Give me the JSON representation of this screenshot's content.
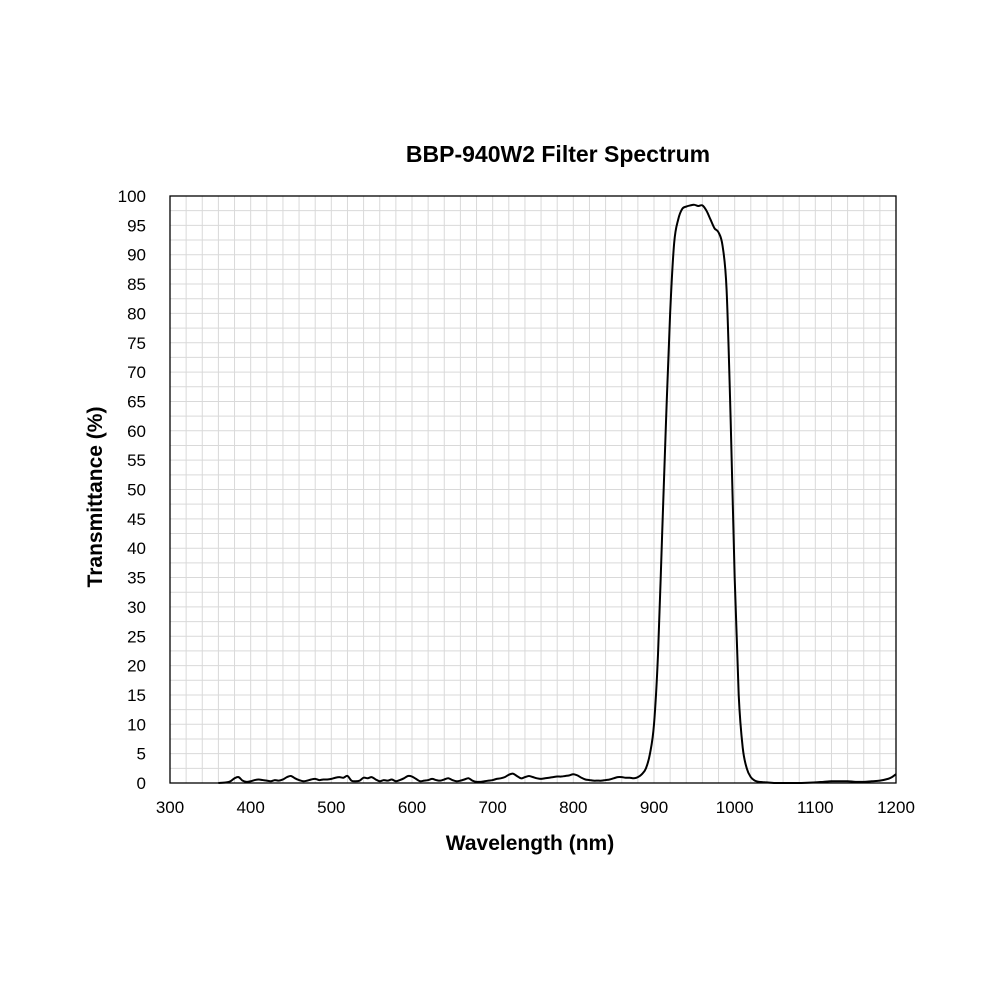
{
  "chart_data": {
    "type": "line",
    "title": "BBP-940W2 Filter Spectrum",
    "xlabel": "Wavelength (nm)",
    "ylabel": "Transmittance (%)",
    "xlim": [
      300,
      1200
    ],
    "ylim": [
      0,
      100
    ],
    "x_ticks": [
      300,
      400,
      500,
      600,
      700,
      800,
      900,
      1000,
      1100,
      1200
    ],
    "y_ticks": [
      0,
      5,
      10,
      15,
      20,
      25,
      30,
      35,
      40,
      45,
      50,
      55,
      60,
      65,
      70,
      75,
      80,
      85,
      90,
      95,
      100
    ],
    "grid": true,
    "legend": "none",
    "line_color": "#000000",
    "series": [
      {
        "x": [
          360,
          370,
          375,
          380,
          385,
          390,
          395,
          400,
          405,
          410,
          415,
          420,
          425,
          430,
          435,
          440,
          445,
          450,
          455,
          460,
          465,
          470,
          475,
          480,
          485,
          490,
          495,
          500,
          505,
          510,
          515,
          520,
          525,
          530,
          535,
          540,
          545,
          550,
          555,
          560,
          565,
          570,
          575,
          580,
          585,
          590,
          595,
          600,
          605,
          610,
          615,
          620,
          625,
          630,
          635,
          640,
          645,
          650,
          655,
          660,
          665,
          670,
          675,
          680,
          685,
          690,
          695,
          700,
          705,
          710,
          715,
          720,
          725,
          730,
          735,
          740,
          745,
          750,
          755,
          760,
          765,
          770,
          775,
          780,
          785,
          790,
          795,
          800,
          805,
          810,
          815,
          820,
          825,
          830,
          835,
          840,
          845,
          850,
          855,
          860,
          865,
          870,
          875,
          880,
          885,
          890,
          895,
          900,
          905,
          910,
          915,
          920,
          925,
          930,
          935,
          940,
          945,
          950,
          955,
          960,
          965,
          970,
          975,
          980,
          985,
          990,
          995,
          1000,
          1005,
          1010,
          1015,
          1020,
          1025,
          1030,
          1040,
          1050,
          1060,
          1070,
          1080,
          1090,
          1100,
          1110,
          1120,
          1130,
          1140,
          1150,
          1160,
          1170,
          1180,
          1190,
          1195,
          1200
        ],
        "y": [
          0,
          0.1,
          0.3,
          0.8,
          1.0,
          0.4,
          0.2,
          0.3,
          0.5,
          0.6,
          0.5,
          0.4,
          0.3,
          0.5,
          0.4,
          0.6,
          1.0,
          1.2,
          0.8,
          0.5,
          0.3,
          0.4,
          0.6,
          0.7,
          0.5,
          0.6,
          0.6,
          0.7,
          0.9,
          1.0,
          0.9,
          1.2,
          0.4,
          0.3,
          0.4,
          0.9,
          0.8,
          1.0,
          0.6,
          0.3,
          0.5,
          0.4,
          0.6,
          0.3,
          0.5,
          0.8,
          1.2,
          1.1,
          0.7,
          0.3,
          0.4,
          0.5,
          0.7,
          0.5,
          0.4,
          0.6,
          0.8,
          0.5,
          0.3,
          0.4,
          0.6,
          0.8,
          0.4,
          0.2,
          0.2,
          0.3,
          0.4,
          0.5,
          0.7,
          0.8,
          1.0,
          1.4,
          1.6,
          1.2,
          0.8,
          1.0,
          1.2,
          1.0,
          0.8,
          0.7,
          0.8,
          0.9,
          1.0,
          1.1,
          1.1,
          1.2,
          1.3,
          1.5,
          1.3,
          0.9,
          0.6,
          0.5,
          0.4,
          0.4,
          0.4,
          0.5,
          0.6,
          0.8,
          1.0,
          1.0,
          0.9,
          0.9,
          0.8,
          1.0,
          1.5,
          2.5,
          5,
          10,
          22,
          42,
          62,
          80,
          92,
          96,
          97.8,
          98.2,
          98.4,
          98.5,
          98.3,
          98.4,
          97.5,
          96,
          94.5,
          93.8,
          91.5,
          84,
          62,
          35,
          15,
          6,
          2.5,
          1,
          0.4,
          0.2,
          0.1,
          0,
          0,
          0,
          0,
          0.05,
          0.1,
          0.2,
          0.3,
          0.3,
          0.3,
          0.2,
          0.2,
          0.3,
          0.4,
          0.7,
          1.0,
          1.5
        ]
      }
    ]
  }
}
